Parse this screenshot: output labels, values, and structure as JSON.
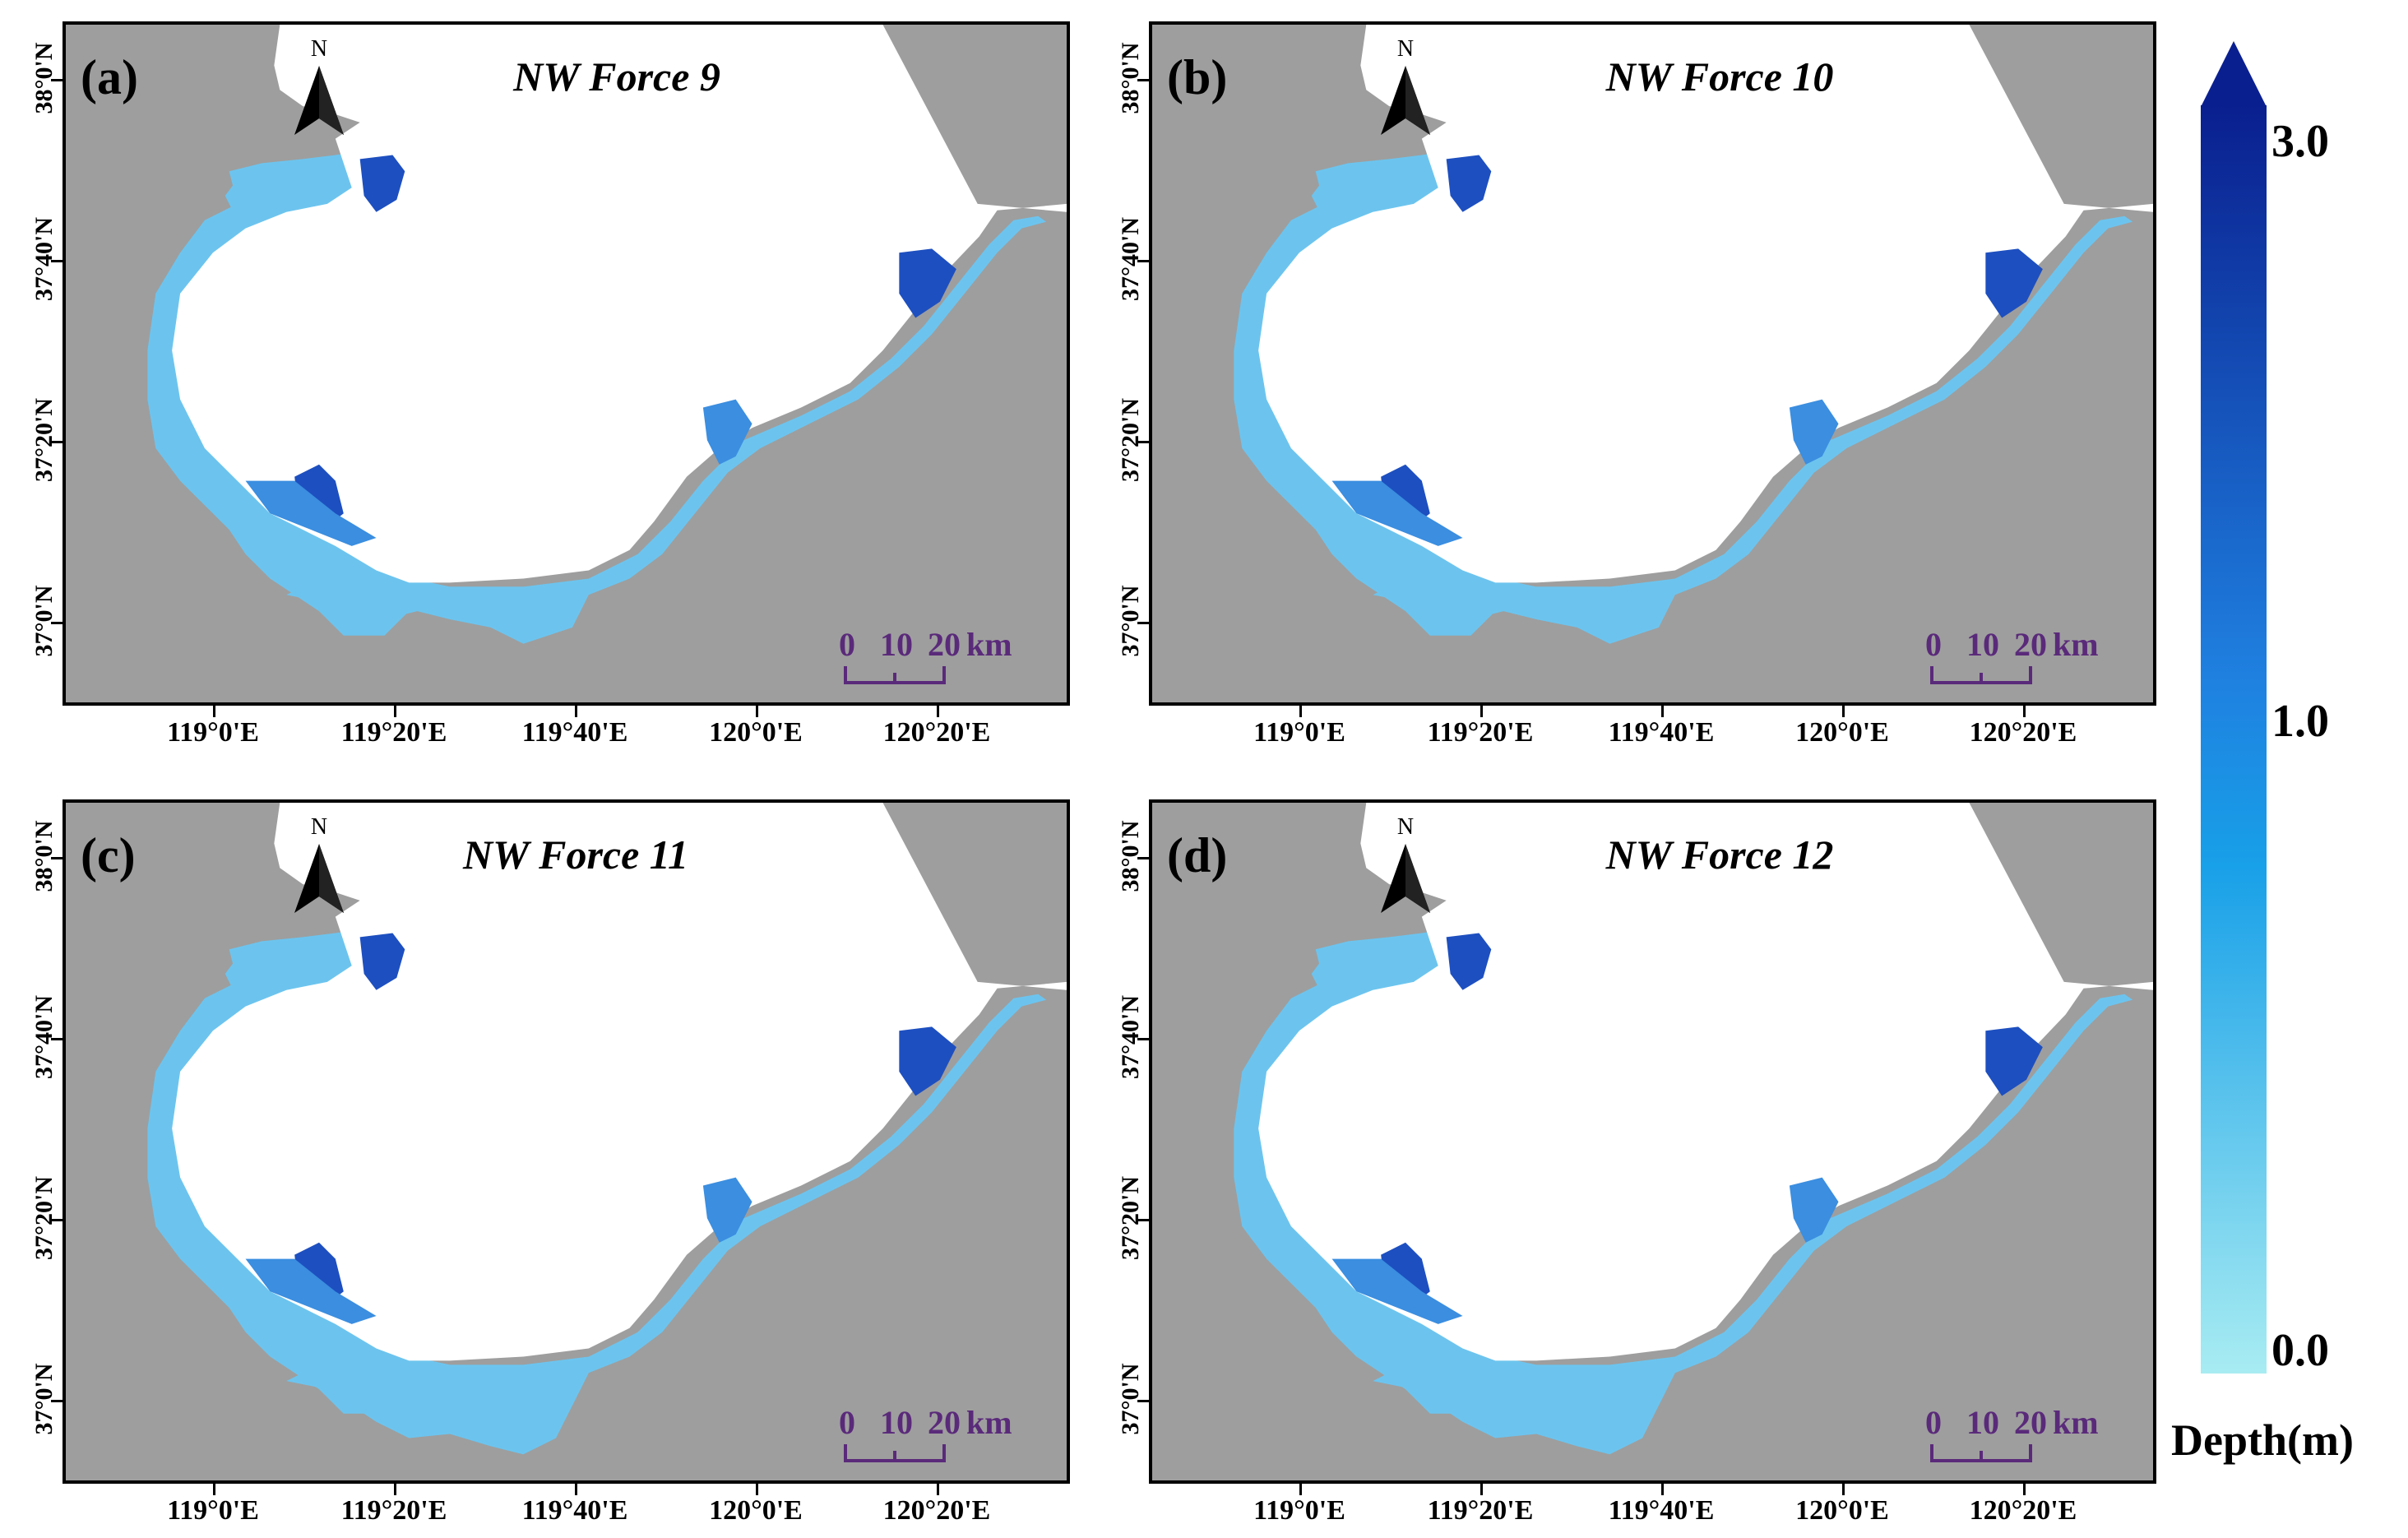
{
  "panels": [
    {
      "letter": "(a)",
      "title": "NW Force 9",
      "variant": 0
    },
    {
      "letter": "(b)",
      "title": "NW Force 10",
      "variant": 1
    },
    {
      "letter": "(c)",
      "title": "NW Force 11",
      "variant": 2
    },
    {
      "letter": "(d)",
      "title": "NW Force 12",
      "variant": 3
    }
  ],
  "north_label": "N",
  "scale_bar": {
    "ticks": [
      "0",
      "10",
      "20"
    ],
    "unit": "km"
  },
  "lat_labels": [
    "38°0'N",
    "37°40'N",
    "37°20'N",
    "37°0'N"
  ],
  "lon_labels": [
    "119°0'E",
    "119°20'E",
    "119°40'E",
    "120°0'E",
    "120°20'E"
  ],
  "legend": {
    "title": "Depth(m)",
    "labels": [
      "3.0",
      "1.0",
      "0.0"
    ],
    "colors": {
      "max": "#0a1f8f",
      "mid": "#1f80e0",
      "min": "#a8ecf2"
    }
  },
  "colors": {
    "land": "#9e9e9e",
    "sea": "#ffffff",
    "shallow": "#6cc4ee",
    "medium": "#3b8ee0",
    "deep": "#1d4fc0"
  }
}
